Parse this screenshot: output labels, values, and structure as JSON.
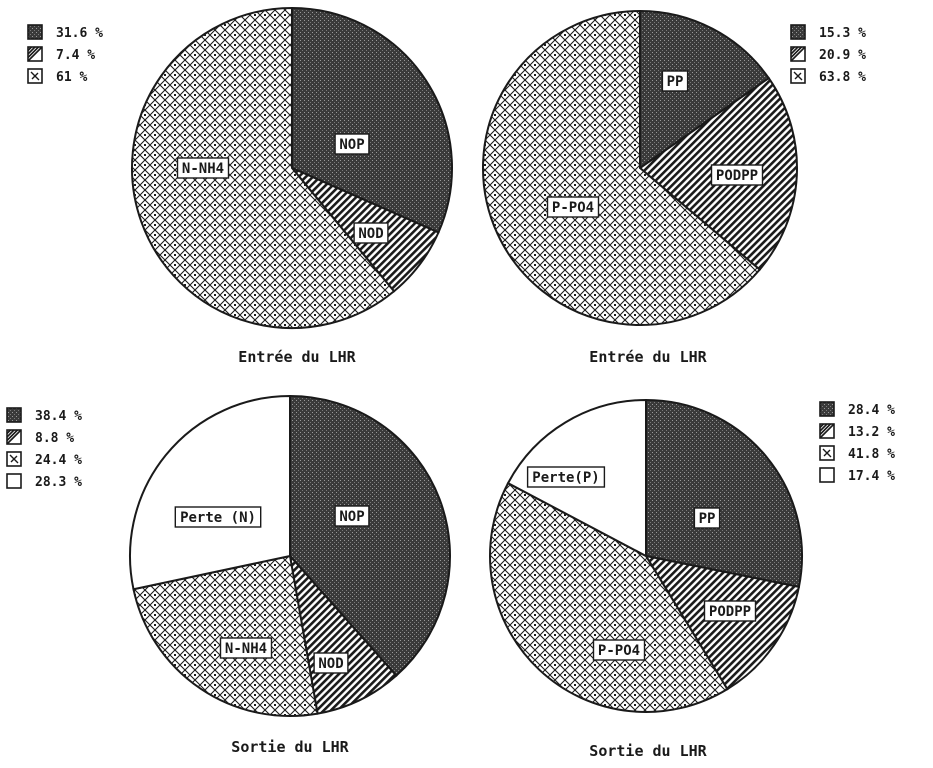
{
  "chart_data": [
    {
      "type": "pie",
      "caption": "Entrée du LHR",
      "slices": [
        {
          "label": "NOP",
          "value": 31.6,
          "legend": "31.6 %",
          "pattern": "dark-dots"
        },
        {
          "label": "NOD",
          "value": 7.4,
          "legend": "7.4 %",
          "pattern": "diagonal-hatch"
        },
        {
          "label": "N-NH4",
          "value": 61,
          "legend": "61 %",
          "pattern": "diamond-lattice"
        }
      ]
    },
    {
      "type": "pie",
      "caption": "Entrée du LHR",
      "slices": [
        {
          "label": "PP",
          "value": 15.3,
          "legend": "15.3 %",
          "pattern": "dark-dots"
        },
        {
          "label": "PODPP",
          "value": 20.9,
          "legend": "20.9 %",
          "pattern": "diagonal-hatch"
        },
        {
          "label": "P-PO4",
          "value": 63.8,
          "legend": "63.8 %",
          "pattern": "diamond-lattice"
        }
      ]
    },
    {
      "type": "pie",
      "caption": "Sortie du LHR",
      "slices": [
        {
          "label": "NOP",
          "value": 38.4,
          "legend": "38.4 %",
          "pattern": "dark-dots"
        },
        {
          "label": "NOD",
          "value": 8.8,
          "legend": "8.8 %",
          "pattern": "diagonal-hatch"
        },
        {
          "label": "N-NH4",
          "value": 24.4,
          "legend": "24.4 %",
          "pattern": "diamond-lattice"
        },
        {
          "label": "Perte (N)",
          "value": 28.3,
          "legend": "28.3 %",
          "pattern": "blank"
        }
      ]
    },
    {
      "type": "pie",
      "caption": "Sortie du LHR",
      "slices": [
        {
          "label": "PP",
          "value": 28.4,
          "legend": "28.4 %",
          "pattern": "dark-dots"
        },
        {
          "label": "PODPP",
          "value": 13.2,
          "legend": "13.2 %",
          "pattern": "diagonal-hatch"
        },
        {
          "label": "P-PO4",
          "value": 41.8,
          "legend": "41.8 %",
          "pattern": "diamond-lattice"
        },
        {
          "label": "Perte(P)",
          "value": 17.4,
          "legend": "17.4 %",
          "pattern": "blank"
        }
      ]
    }
  ],
  "colors": {
    "ink": "#1a1a1a",
    "dark_fill": "#3a3a3a",
    "background": "#ffffff"
  }
}
